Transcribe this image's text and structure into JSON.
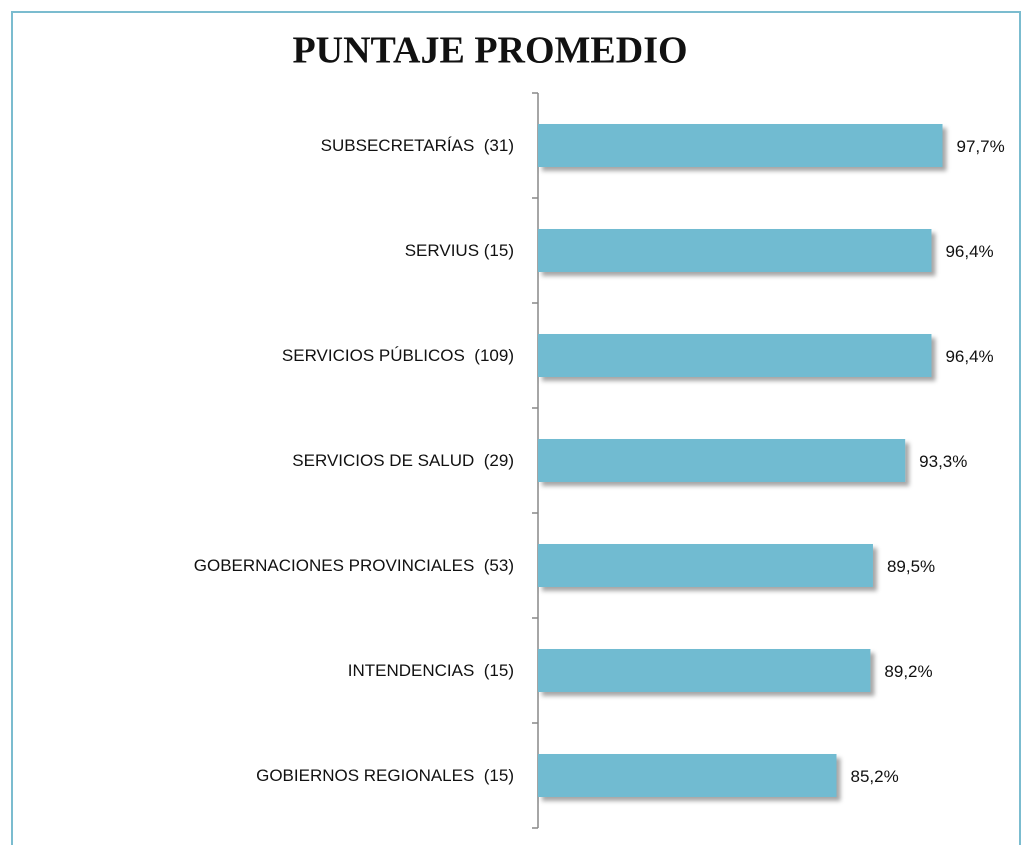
{
  "chart_data": {
    "type": "barh",
    "title": "PUNTAJE PROMEDIO",
    "categories": [
      "SUBSECRETARÍAS  (31)",
      "SERVIUS (15)",
      "SERVICIOS PÚBLICOS  (109)",
      "SERVICIOS DE SALUD  (29)",
      "GOBERNACIONES PROVINCIALES  (53)",
      "INTENDENCIAS  (15)",
      "GOBIERNOS REGIONALES  (15)"
    ],
    "values": [
      97.7,
      96.4,
      96.4,
      93.3,
      89.5,
      89.2,
      85.2
    ],
    "value_labels": [
      "97,7%",
      "96,4%",
      "96,4%",
      "93,3%",
      "89,5%",
      "89,2%",
      "85,2%"
    ],
    "color": "#71bbd1",
    "xlim": [
      50,
      100
    ]
  }
}
